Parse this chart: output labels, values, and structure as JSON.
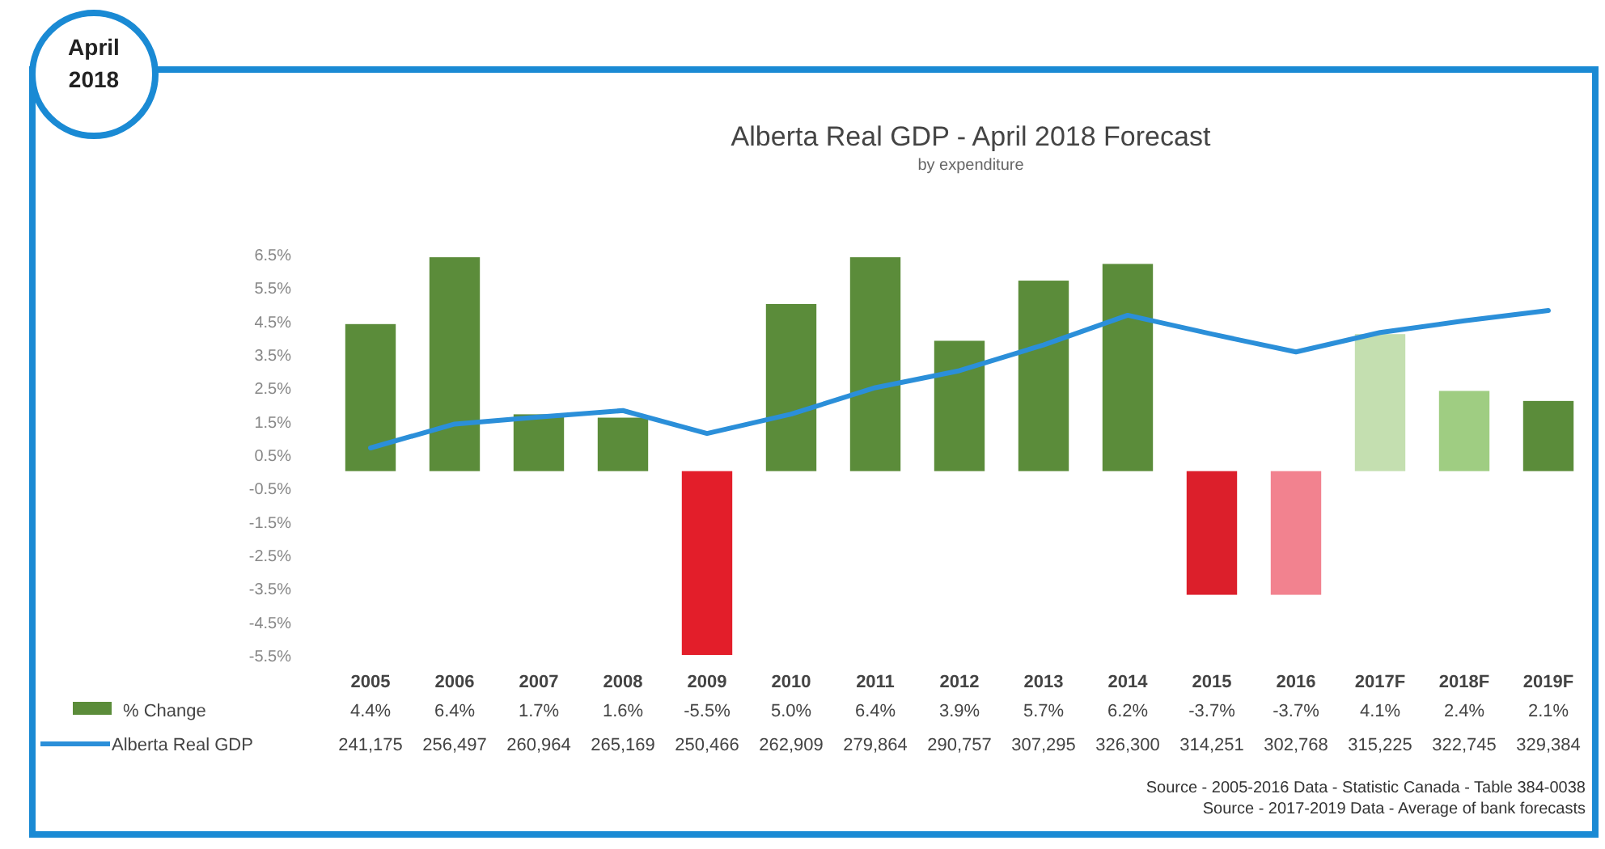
{
  "chart_data": {
    "type": "bar",
    "title": "Alberta Real GDP - April 2018 Forecast",
    "subtitle": "by expenditure",
    "categories": [
      "2005",
      "2006",
      "2007",
      "2008",
      "2009",
      "2010",
      "2011",
      "2012",
      "2013",
      "2014",
      "2015",
      "2016",
      "2017F",
      "2018F",
      "2019F"
    ],
    "series": [
      {
        "name": "% Change",
        "color": "#5b8c3a",
        "colors": [
          "#5b8c3a",
          "#5b8c3a",
          "#5b8c3a",
          "#5b8c3a",
          "#e31e2a",
          "#5b8c3a",
          "#5b8c3a",
          "#5b8c3a",
          "#5b8c3a",
          "#5b8c3a",
          "#dc1f2b",
          "#f2828f",
          "#c4dfb0",
          "#9fcd82",
          "#5b8c3a"
        ],
        "values": [
          4.4,
          6.4,
          1.7,
          1.6,
          -5.5,
          5.0,
          6.4,
          3.9,
          5.7,
          6.2,
          -3.7,
          -3.7,
          4.1,
          2.4,
          2.1
        ],
        "value_labels": [
          "4.4%",
          "6.4%",
          "1.7%",
          "1.6%",
          "-5.5%",
          "5.0%",
          "6.4%",
          "3.9%",
          "5.7%",
          "6.2%",
          "-3.7%",
          "-3.7%",
          "4.1%",
          "2.4%",
          "2.1%"
        ]
      },
      {
        "name": "Alberta Real GDP",
        "type": "line",
        "axis": "y2",
        "color": "#2b8fd9",
        "values": [
          241175,
          256497,
          260964,
          265169,
          250466,
          262909,
          279864,
          290757,
          307295,
          326300,
          314251,
          302768,
          315225,
          322745,
          329384
        ],
        "value_labels": [
          "241,175",
          "256,497",
          "260,964",
          "265,169",
          "250,466",
          "262,909",
          "279,864",
          "290,757",
          "307,295",
          "326,300",
          "314,251",
          "302,768",
          "315,225",
          "322,745",
          "329,384"
        ]
      }
    ],
    "ylim": [
      -5.5,
      6.5
    ],
    "yticks": [
      {
        "value": 6.5,
        "label": "6.5%"
      },
      {
        "value": 5.5,
        "label": "5.5%"
      },
      {
        "value": 4.5,
        "label": "4.5%"
      },
      {
        "value": 3.5,
        "label": "3.5%"
      },
      {
        "value": 2.5,
        "label": "2.5%"
      },
      {
        "value": 1.5,
        "label": "1.5%"
      },
      {
        "value": 0.5,
        "label": "0.5%"
      },
      {
        "value": -0.5,
        "label": "-0.5%"
      },
      {
        "value": -1.5,
        "label": "-1.5%"
      },
      {
        "value": -2.5,
        "label": "-2.5%"
      },
      {
        "value": -3.5,
        "label": "-3.5%"
      },
      {
        "value": -4.5,
        "label": "-4.5%"
      },
      {
        "value": -5.5,
        "label": "-5.5%"
      }
    ],
    "grid": false,
    "legend": "bottom",
    "marker": "none",
    "annotations": [
      "April 2018",
      "Source - 2005-2016 Data - Statistic Canada - Table 384-0038",
      "Source - 2017-2019 Data - Average of bank forecasts"
    ]
  }
}
